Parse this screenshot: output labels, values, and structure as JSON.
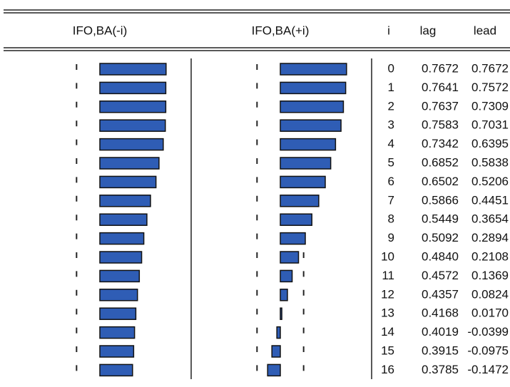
{
  "chart_data": {
    "type": "correlogram",
    "headers": {
      "left": "IFO,BA(-i)",
      "right": "IFO,BA(+i)",
      "index": "i"
    },
    "categories": [
      0,
      1,
      2,
      3,
      4,
      5,
      6,
      7,
      8,
      9,
      10,
      11,
      12,
      13,
      14,
      15,
      16
    ],
    "series": [
      {
        "name": "lag",
        "color": "#2f5db5",
        "values": [
          0.7672,
          0.7641,
          0.7637,
          0.7583,
          0.7342,
          0.6852,
          0.6502,
          0.5866,
          0.5449,
          0.5092,
          0.484,
          0.4572,
          0.4357,
          0.4168,
          0.4019,
          0.3915,
          0.3785
        ],
        "value_labels": [
          "0.7672",
          "0.7641",
          "0.7637",
          "0.7583",
          "0.7342",
          "0.6852",
          "0.6502",
          "0.5866",
          "0.5449",
          "0.5092",
          "0.4840",
          "0.4572",
          "0.4357",
          "0.4168",
          "0.4019",
          "0.3915",
          "0.3785"
        ]
      },
      {
        "name": "lead",
        "color": "#2f5db5",
        "values": [
          0.7672,
          0.7572,
          0.7309,
          0.7031,
          0.6395,
          0.5838,
          0.5206,
          0.4451,
          0.3654,
          0.2894,
          0.2108,
          0.1369,
          0.0824,
          0.017,
          -0.0399,
          -0.0975,
          -0.1472
        ],
        "value_labels": [
          "0.7672",
          "0.7572",
          "0.7309",
          "0.7031",
          "0.6395",
          "0.5838",
          "0.5206",
          "0.4451",
          "0.3654",
          "0.2894",
          "0.2108",
          "0.1369",
          "0.0824",
          "0.0170",
          "-0.0399",
          "-0.0975",
          "-0.1472"
        ]
      }
    ],
    "xlim": [
      -1,
      1
    ],
    "bounds": [
      -0.27,
      0.27
    ]
  }
}
